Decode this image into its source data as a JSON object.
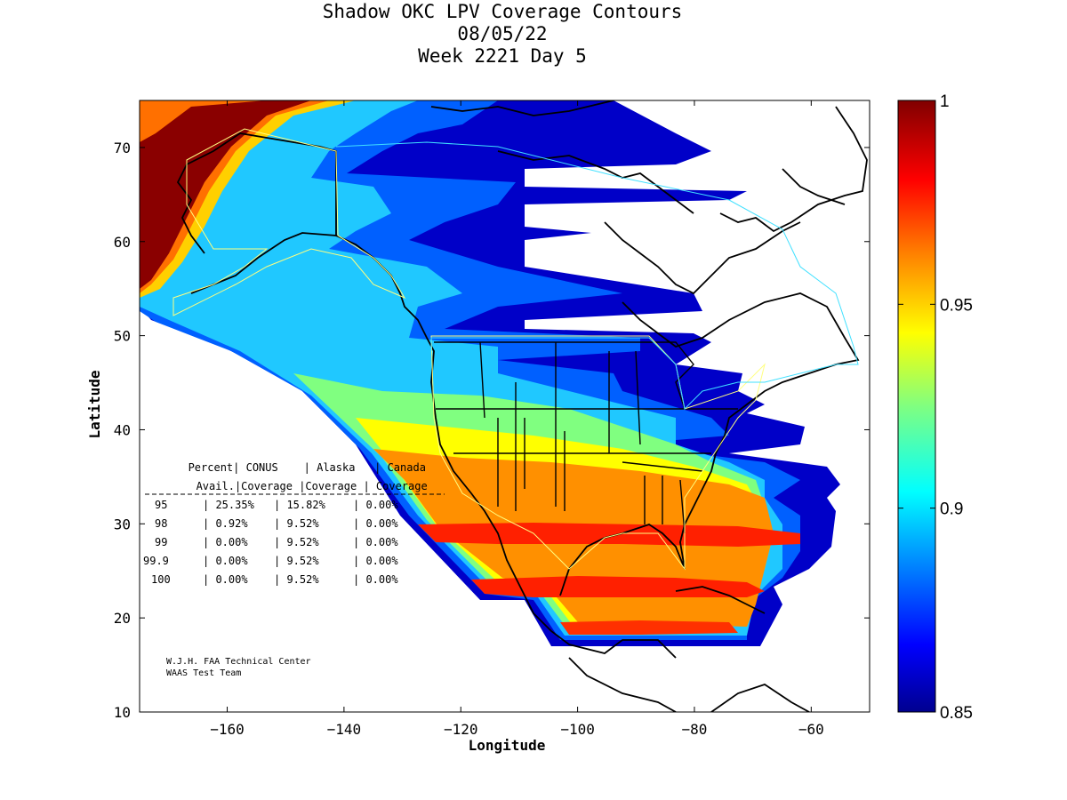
{
  "title": {
    "line1": "Shadow OKC LPV Coverage Contours",
    "line2": "08/05/22",
    "line3": "Week 2221 Day 5"
  },
  "axes": {
    "xlabel": "Longitude",
    "ylabel": "Latitude",
    "xlim": [
      -175,
      -50
    ],
    "ylim": [
      10,
      75
    ],
    "xticks": [
      -160,
      -140,
      -120,
      -100,
      -80,
      -60
    ],
    "yticks": [
      10,
      20,
      30,
      40,
      50,
      60,
      70
    ]
  },
  "colorbar": {
    "range": [
      0.85,
      1
    ],
    "ticks": [
      "1",
      "0.95",
      "0.9",
      "0.85"
    ],
    "colormap": "jet",
    "colors": [
      "#00008f",
      "#0000ff",
      "#0080ff",
      "#00ffff",
      "#80ff80",
      "#ffff00",
      "#ff8000",
      "#ff0000",
      "#800000"
    ]
  },
  "table": {
    "header1": [
      "Percent",
      "CONUS",
      "Alaska",
      "Canada"
    ],
    "header2": [
      "Avail.",
      "Coverage",
      "Coverage",
      "Coverage"
    ],
    "rows": [
      [
        "95",
        "25.35%",
        "15.82%",
        "0.00%"
      ],
      [
        "98",
        "0.92%",
        "9.52%",
        "0.00%"
      ],
      [
        "99",
        "0.00%",
        "9.52%",
        "0.00%"
      ],
      [
        "99.9",
        "0.00%",
        "9.52%",
        "0.00%"
      ],
      [
        "100",
        "0.00%",
        "9.52%",
        "0.00%"
      ]
    ]
  },
  "credit": {
    "line1": "W.J.H. FAA Technical Center",
    "line2": "WAAS Test Team"
  }
}
